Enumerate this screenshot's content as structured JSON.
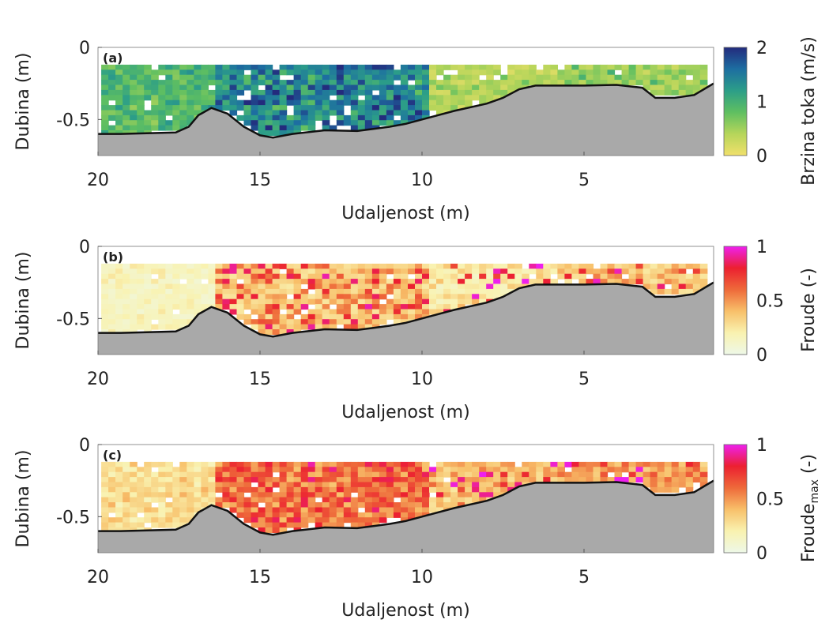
{
  "chart_data": [
    {
      "type": "heatmap",
      "panel_label": "(a)",
      "xlabel": "Udaljenost (m)",
      "ylabel": "Dubina (m)",
      "xlim": [
        20,
        1
      ],
      "ylim": [
        -0.75,
        0
      ],
      "xticks": [
        20,
        15,
        10,
        5
      ],
      "yticks": [
        0,
        -0.5
      ],
      "ytick_labels": [
        "0",
        "-0.5"
      ],
      "colorbar": {
        "label": "Brzina toka (m/s)",
        "ticks": [
          0,
          1,
          2
        ],
        "range": [
          0,
          2
        ],
        "colormap": [
          "#f1e06b",
          "#b6d55a",
          "#5fbf61",
          "#2c9e88",
          "#1d6ea1",
          "#232b7d"
        ]
      },
      "grid": false
    },
    {
      "type": "heatmap",
      "panel_label": "(b)",
      "xlabel": "Udaljenost (m)",
      "ylabel": "Dubina (m)",
      "xlim": [
        20,
        1
      ],
      "ylim": [
        -0.75,
        0
      ],
      "xticks": [
        20,
        15,
        10,
        5
      ],
      "yticks": [
        0,
        -0.5
      ],
      "ytick_labels": [
        "0",
        "-0.5"
      ],
      "colorbar": {
        "label": "Froude (-)",
        "ticks": [
          0,
          0.5,
          1
        ],
        "range": [
          0,
          1
        ],
        "colormap": [
          "#eef8e8",
          "#f9f2b0",
          "#f8c06a",
          "#ee6a3a",
          "#ec2030",
          "#ee20ee"
        ]
      },
      "grid": false
    },
    {
      "type": "heatmap",
      "panel_label": "(c)",
      "xlabel": "Udaljenost (m)",
      "ylabel": "Dubina (m)",
      "xlim": [
        20,
        1
      ],
      "ylim": [
        -0.75,
        0
      ],
      "xticks": [
        20,
        15,
        10,
        5
      ],
      "yticks": [
        0,
        -0.5
      ],
      "ytick_labels": [
        "0",
        "-0.5"
      ],
      "colorbar": {
        "label": "Froude",
        "label_subscript": "max",
        "label_suffix": " (-)",
        "ticks": [
          0,
          0.5,
          1
        ],
        "range": [
          0,
          1
        ],
        "colormap": [
          "#eef8e8",
          "#f9f2b0",
          "#f8c06a",
          "#ee6a3a",
          "#ec2030",
          "#ee20ee"
        ]
      },
      "grid": false
    }
  ],
  "bed_profile": {
    "x": [
      20,
      19.3,
      18.5,
      17.6,
      17.2,
      16.9,
      16.5,
      16.0,
      15.5,
      15.0,
      14.6,
      14.0,
      13.0,
      12.0,
      11.5,
      11.0,
      10.5,
      10.0,
      9.0,
      8.0,
      7.5,
      7.0,
      6.5,
      6.0,
      5.0,
      4.0,
      3.2,
      2.8,
      2.2,
      1.6,
      1.0
    ],
    "depth": [
      -0.6,
      -0.6,
      -0.595,
      -0.59,
      -0.55,
      -0.47,
      -0.42,
      -0.46,
      -0.55,
      -0.61,
      -0.625,
      -0.6,
      -0.575,
      -0.58,
      -0.565,
      -0.55,
      -0.53,
      -0.5,
      -0.44,
      -0.39,
      -0.35,
      -0.29,
      -0.265,
      -0.265,
      -0.265,
      -0.26,
      -0.28,
      -0.35,
      -0.35,
      -0.33,
      -0.25
    ]
  },
  "measurement_top_depth": -0.12,
  "velocity_field": {
    "description_of_values": "m/s",
    "bands": [
      {
        "x_from": 20,
        "x_to": 16.5,
        "values": [
          0.9,
          1.0,
          0.8,
          1.1,
          0.9,
          0.7,
          1.0,
          0.8
        ]
      },
      {
        "x_from": 16.5,
        "x_to": 10,
        "values": [
          1.3,
          1.4,
          1.6,
          1.8,
          1.5,
          1.4,
          1.2,
          1.0
        ]
      },
      {
        "x_from": 10,
        "x_to": 6,
        "values": [
          0.6,
          0.5,
          0.4,
          0.5,
          0.3,
          0.4,
          0.2,
          0.3
        ]
      },
      {
        "x_from": 6,
        "x_to": 1.2,
        "values": [
          0.4,
          0.3,
          0.5,
          0.6,
          0.4,
          0.5,
          0.8,
          0.6
        ]
      }
    ]
  },
  "froude_field": {
    "bands": [
      {
        "x_from": 20,
        "x_to": 16.5,
        "values": [
          0.1,
          0.15,
          0.2,
          0.12,
          0.18,
          0.1,
          0.15,
          0.2
        ]
      },
      {
        "x_from": 16.5,
        "x_to": 10,
        "values": [
          0.3,
          0.45,
          0.7,
          0.35,
          0.75,
          0.4,
          0.5,
          0.3
        ]
      },
      {
        "x_from": 10,
        "x_to": 6,
        "values": [
          0.2,
          0.15,
          0.25,
          0.3,
          0.2,
          0.35,
          0.9,
          0.3
        ]
      },
      {
        "x_from": 6,
        "x_to": 1.2,
        "values": [
          0.3,
          0.85,
          0.4,
          0.3,
          0.45,
          0.35,
          0.5,
          0.3
        ]
      }
    ]
  },
  "froude_max_field": {
    "bands": [
      {
        "x_from": 20,
        "x_to": 16.5,
        "values": [
          0.2,
          0.3,
          0.25,
          0.35,
          0.3,
          0.25,
          0.3,
          0.35
        ]
      },
      {
        "x_from": 16.5,
        "x_to": 10,
        "values": [
          0.5,
          0.6,
          0.75,
          0.55,
          0.7,
          0.6,
          0.65,
          0.5
        ]
      },
      {
        "x_from": 10,
        "x_to": 6,
        "values": [
          0.35,
          0.3,
          0.4,
          0.45,
          0.35,
          0.5,
          0.9,
          0.4
        ]
      },
      {
        "x_from": 6,
        "x_to": 1.2,
        "values": [
          0.4,
          0.85,
          0.5,
          0.45,
          0.55,
          0.5,
          0.6,
          0.45
        ]
      }
    ]
  },
  "colors": {
    "bed_fill": "#a9a9a9",
    "bed_line": "#111111",
    "axis": "#333333",
    "text": "#222222"
  }
}
